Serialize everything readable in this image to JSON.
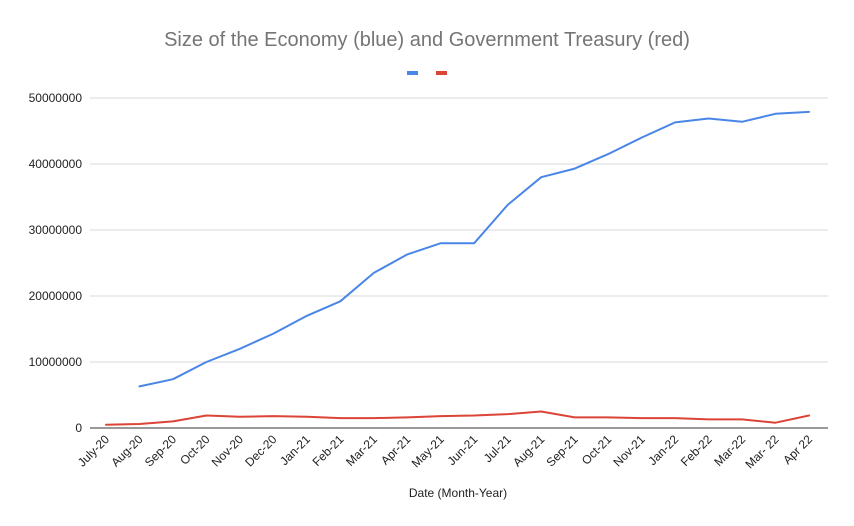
{
  "chart_data": {
    "type": "line",
    "title": "Size of the Economy (blue) and Government Treasury (red)",
    "xlabel": "Date (Month-Year)",
    "ylabel": "",
    "categories": [
      "July-20",
      "Aug-20",
      "Sep-20",
      "Oct-20",
      "Nov-20",
      "Dec-20",
      "Jan-21",
      "Feb-21",
      "Mar-21",
      "Apr-21",
      "May-21",
      "Jun-21",
      "Jul-21",
      "Aug-21",
      "Sep-21",
      "Oct-21",
      "Nov-21",
      "Jan-22",
      "Feb-22",
      "Mar-22",
      "Mar- 22",
      "Apr 22"
    ],
    "yticks": [
      "0",
      "10000000",
      "20000000",
      "30000000",
      "40000000",
      "50000000"
    ],
    "ylim": [
      0,
      55000000
    ],
    "grid": true,
    "legend": "top",
    "series": [
      {
        "color": "#4a86e8",
        "values": [
          null,
          6300000,
          7400000,
          10000000,
          12000000,
          14300000,
          17000000,
          19200000,
          23500000,
          26300000,
          28000000,
          28000000,
          33800000,
          38000000,
          39300000,
          41500000,
          44000000,
          46300000,
          46900000,
          46400000,
          47600000,
          47900000
        ]
      },
      {
        "color": "#db4437",
        "values": [
          500000,
          600000,
          1000000,
          1900000,
          1700000,
          1800000,
          1700000,
          1500000,
          1500000,
          1600000,
          1800000,
          1900000,
          2100000,
          2500000,
          1600000,
          1600000,
          1500000,
          1500000,
          1300000,
          1300000,
          800000,
          1900000
        ]
      }
    ]
  }
}
